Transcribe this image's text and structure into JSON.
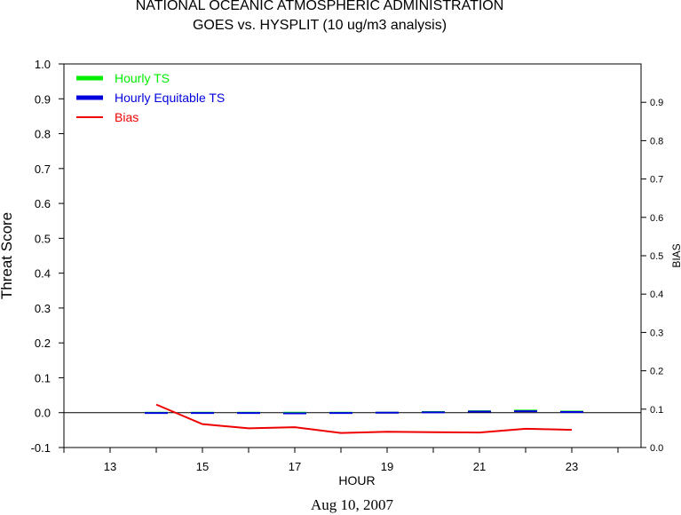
{
  "chart_data": {
    "type": "line",
    "title": "NATIONAL OCEANIC ATMOSPHERIC ADMINISTRATION",
    "subtitle": "GOES vs. HYSPLIT  (10 ug/m3 analysis)",
    "xlabel": "HOUR",
    "ylabel": "Threat Score",
    "y2label": "BIAS",
    "date_label": "Aug 10, 2007",
    "xlim": [
      12,
      24.5
    ],
    "ylim": [
      -0.1,
      1.0
    ],
    "y2lim": [
      0.0,
      1.0
    ],
    "xticks": [
      13,
      15,
      17,
      19,
      21,
      23
    ],
    "yticks": [
      -0.1,
      0.0,
      0.1,
      0.2,
      0.3,
      0.4,
      0.5,
      0.6,
      0.7,
      0.8,
      0.9,
      1.0
    ],
    "y2ticks": [
      0.0,
      0.1,
      0.2,
      0.3,
      0.4,
      0.5,
      0.6,
      0.7,
      0.8,
      0.9
    ],
    "zero_line": true,
    "legend_position": "top-left",
    "series": [
      {
        "name": "Hourly TS",
        "style": "segments",
        "axis": "left",
        "color": "#00ee00",
        "x": [
          14,
          15,
          16,
          17,
          18,
          19,
          20,
          21,
          22,
          23
        ],
        "values": [
          0.0,
          0.0,
          0.0,
          0.0,
          0.0,
          0.0,
          0.002,
          0.004,
          0.006,
          0.003
        ]
      },
      {
        "name": "Hourly Equitable TS",
        "style": "segments",
        "axis": "left",
        "color": "#0000dd",
        "x": [
          14,
          15,
          16,
          17,
          18,
          19,
          20,
          21,
          22,
          23
        ],
        "values": [
          -0.001,
          -0.001,
          -0.001,
          -0.002,
          -0.001,
          0.0,
          0.001,
          0.003,
          0.004,
          0.002
        ]
      },
      {
        "name": "Bias",
        "style": "line",
        "axis": "right",
        "color": "#ee0000",
        "x": [
          14,
          15,
          16,
          17,
          18,
          19,
          20,
          21,
          22,
          23
        ],
        "values": [
          0.112,
          0.061,
          0.05,
          0.053,
          0.038,
          0.041,
          0.04,
          0.039,
          0.049,
          0.046
        ]
      }
    ]
  }
}
